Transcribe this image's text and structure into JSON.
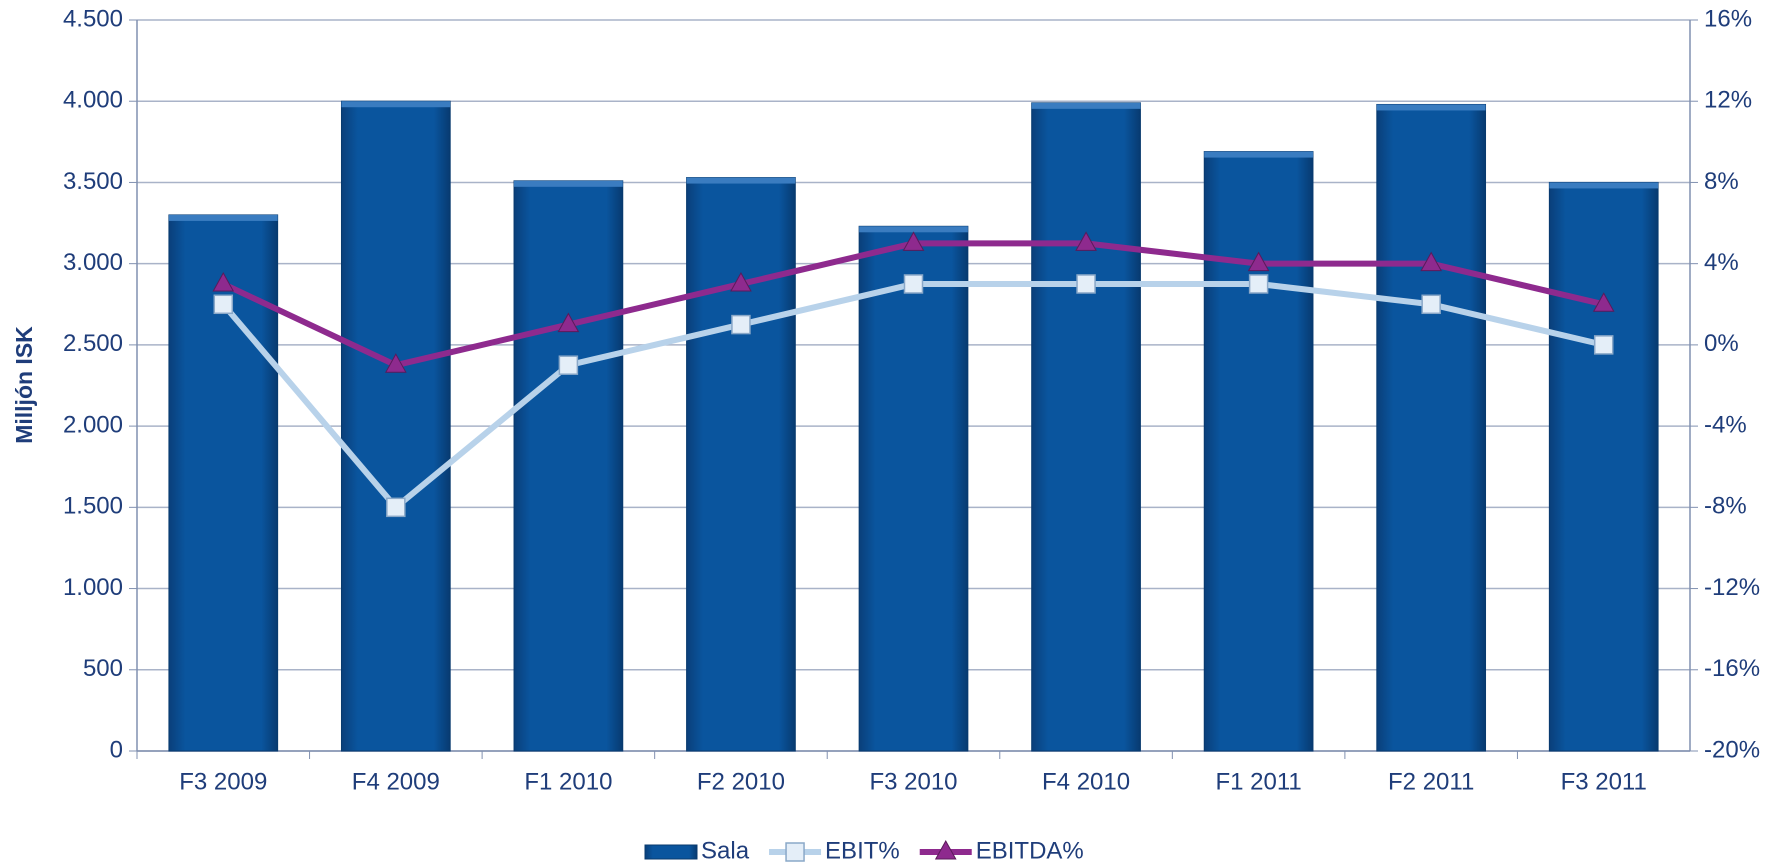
{
  "chart_data": {
    "type": "bar_line",
    "y_label": "Milljón ISK",
    "categories": [
      "F3 2009",
      "F4 2009",
      "F1 2010",
      "F2 2010",
      "F3 2010",
      "F4 2010",
      "F1 2011",
      "F2 2011",
      "F3 2011"
    ],
    "series": [
      {
        "name": "Sala",
        "color": "#0a559e",
        "type": "bar",
        "values": [
          3300,
          4000,
          3510,
          3530,
          3230,
          3990,
          3690,
          3980,
          3500
        ]
      },
      {
        "name": "EBIT%",
        "color": "#b8d2ea",
        "type": "line",
        "marker": "square",
        "axis": "y2",
        "values": [
          2,
          -8,
          -1,
          1,
          3,
          3,
          3,
          2,
          0
        ]
      },
      {
        "name": "EBITDA%",
        "color": "#8e2a8e",
        "type": "line",
        "marker": "triangle",
        "axis": "y2",
        "values": [
          3,
          -1,
          1,
          3,
          5,
          5,
          4,
          4,
          2
        ]
      }
    ],
    "ylim": [
      0,
      4500
    ],
    "yticks": [
      0,
      500,
      {
        "value": 1000,
        "label": "1.000"
      },
      {
        "value": 1500,
        "label": "1.500"
      },
      {
        "value": 2000,
        "label": "2.000"
      },
      {
        "value": 2500,
        "label": "2.500"
      },
      {
        "value": 3000,
        "label": "3.000"
      },
      {
        "value": 3500,
        "label": "3.500"
      },
      {
        "value": 4000,
        "label": "4.000"
      },
      {
        "value": 4500,
        "label": "4.500"
      }
    ],
    "y2lim": [
      -20,
      16
    ],
    "y2ticks": [
      {
        "value": -20,
        "label": "-20%"
      },
      {
        "value": -16,
        "label": "-16%"
      },
      {
        "value": -12,
        "label": "-12%"
      },
      {
        "value": -8,
        "label": "-8%"
      },
      {
        "value": -4,
        "label": "-4%"
      },
      {
        "value": 0,
        "label": "0%"
      },
      {
        "value": 4,
        "label": "4%"
      },
      {
        "value": 8,
        "label": "8%"
      },
      {
        "value": 12,
        "label": "12%"
      },
      {
        "value": 16,
        "label": "16%"
      }
    ],
    "grid": true
  }
}
